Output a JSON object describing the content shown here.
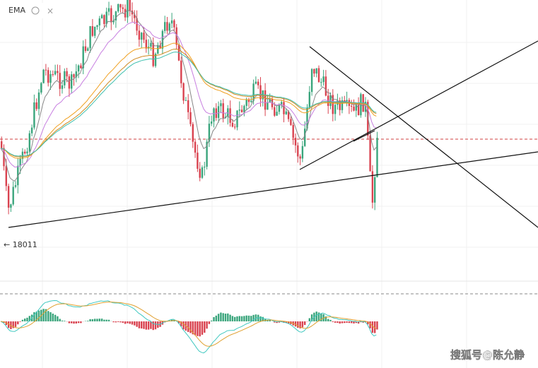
{
  "toolbar": {
    "indicator": "EMA"
  },
  "chart": {
    "low_label": "← 18011"
  },
  "watermark": "搜狐号@陈允静"
}
